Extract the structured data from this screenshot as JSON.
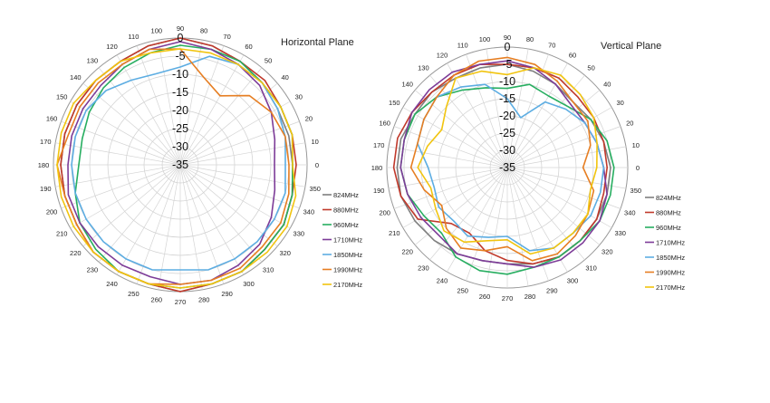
{
  "chart_data": [
    {
      "type": "polar",
      "title": "Horizontal Plane",
      "radial_ticks": [
        0,
        -5,
        -10,
        -15,
        -20,
        -25,
        -30,
        -35
      ],
      "rlim": [
        -35,
        0
      ],
      "angle_labels": [
        "0",
        "10",
        "20",
        "30",
        "40",
        "50",
        "60",
        "70",
        "80",
        "90",
        "100",
        "110",
        "120",
        "130",
        "140",
        "150",
        "160",
        "170",
        "180",
        "190",
        "200",
        "210",
        "220",
        "230",
        "240",
        "250",
        "260",
        "270",
        "280",
        "290",
        "300",
        "310",
        "320",
        "330",
        "340",
        "350"
      ],
      "angles_deg": [
        0,
        15,
        30,
        45,
        60,
        75,
        90,
        105,
        120,
        135,
        150,
        165,
        180,
        195,
        210,
        225,
        240,
        255,
        270,
        285,
        300,
        315,
        330,
        345
      ],
      "legend_position": "right",
      "series": [
        {
          "name": "824MHz",
          "color": "#7f7f7f",
          "values": [
            -4,
            -4,
            -4,
            -3,
            -2,
            -1,
            0,
            -1,
            -2,
            -2,
            -2,
            -2,
            -2,
            -2,
            -2,
            -1,
            -1,
            -1,
            0,
            -1,
            -1,
            -2,
            -2,
            -3
          ]
        },
        {
          "name": "880MHz",
          "color": "#c0392b",
          "values": [
            -3,
            -3,
            -3,
            -2,
            -2,
            -1,
            0,
            -1,
            -2,
            -2,
            -2,
            -2,
            -2,
            -2,
            -2,
            -1,
            -1,
            -1,
            0,
            -1,
            -1,
            -2,
            -2,
            -3
          ]
        },
        {
          "name": "960MHz",
          "color": "#27ae60",
          "values": [
            -4,
            -3,
            -3,
            -3,
            -2,
            -2,
            -2,
            -3,
            -4,
            -5,
            -6,
            -7,
            -7,
            -5,
            -3,
            -2,
            -1,
            -1,
            -1,
            -1,
            -1,
            -2,
            -2,
            -3
          ]
        },
        {
          "name": "1710MHz",
          "color": "#7d3c98",
          "values": [
            -9,
            -8,
            -6,
            -4,
            -3,
            -2,
            -1,
            -2,
            -3,
            -4,
            -4,
            -4,
            -4,
            -3,
            -3,
            -3,
            -3,
            -3,
            -2,
            -2,
            -3,
            -4,
            -6,
            -8
          ]
        },
        {
          "name": "1850MHz",
          "color": "#5dade2",
          "values": [
            -6,
            -5,
            -4,
            -3,
            -3,
            -4,
            -8,
            -9,
            -8,
            -6,
            -5,
            -5,
            -5,
            -5,
            -5,
            -5,
            -5,
            -5,
            -6,
            -5,
            -5,
            -5,
            -5,
            -5
          ]
        },
        {
          "name": "1990MHz",
          "color": "#e67e22",
          "values": [
            -5,
            -5,
            -6,
            -8,
            -13,
            -10,
            -3,
            -2,
            -3,
            -3,
            -3,
            -3,
            -1,
            -2,
            -2,
            -1,
            -1,
            -1,
            -2,
            -2,
            -2,
            -3,
            -3,
            -4
          ]
        },
        {
          "name": "2170MHz",
          "color": "#f1c40f",
          "values": [
            -4,
            -3,
            -3,
            -3,
            -3,
            -3,
            -3,
            -3,
            -2,
            -2,
            -1,
            -1,
            -1,
            -1,
            -1,
            -1,
            -1,
            -1,
            -1,
            -1,
            -1,
            -1,
            -1,
            -2
          ]
        }
      ]
    },
    {
      "type": "polar",
      "title": "Vertical Plane",
      "radial_ticks": [
        0,
        -5,
        -10,
        -15,
        -20,
        -25,
        -30,
        -35
      ],
      "rlim": [
        -35,
        0
      ],
      "angle_labels": [
        "0",
        "10",
        "20",
        "30",
        "40",
        "50",
        "60",
        "70",
        "80",
        "90",
        "100",
        "110",
        "120",
        "130",
        "140",
        "150",
        "160",
        "170",
        "180",
        "190",
        "200",
        "210",
        "220",
        "230",
        "240",
        "250",
        "260",
        "270",
        "280",
        "290",
        "300",
        "310",
        "320",
        "330",
        "340",
        "350"
      ],
      "angles_deg": [
        0,
        15,
        30,
        45,
        60,
        75,
        90,
        105,
        120,
        135,
        150,
        165,
        180,
        195,
        210,
        225,
        240,
        255,
        270,
        285,
        300,
        315,
        330,
        345
      ],
      "legend_position": "right",
      "series": [
        {
          "name": "824MHz",
          "color": "#7f7f7f",
          "values": [
            -5,
            -6,
            -7,
            -8,
            -7,
            -6,
            -5,
            -5,
            -5,
            -4,
            -4,
            -3,
            -3,
            -3,
            -4,
            -5,
            -6,
            -7,
            -7,
            -6,
            -5,
            -5,
            -5,
            -5
          ]
        },
        {
          "name": "880MHz",
          "color": "#c0392b",
          "values": [
            -6,
            -6,
            -6,
            -6,
            -5,
            -5,
            -5,
            -4,
            -4,
            -4,
            -3,
            -2,
            -2,
            -3,
            -5,
            -12,
            -13,
            -10,
            -8,
            -6,
            -5,
            -5,
            -5,
            -6
          ]
        },
        {
          "name": "960MHz",
          "color": "#27ae60",
          "values": [
            -4,
            -5,
            -7,
            -10,
            -11,
            -10,
            -12,
            -11,
            -9,
            -6,
            -4,
            -4,
            -4,
            -5,
            -7,
            -8,
            -5,
            -4,
            -4,
            -5,
            -5,
            -5,
            -4,
            -4
          ]
        },
        {
          "name": "1710MHz",
          "color": "#7d3c98",
          "values": [
            -7,
            -8,
            -9,
            -9,
            -7,
            -5,
            -4,
            -4,
            -3,
            -3,
            -3,
            -4,
            -4,
            -5,
            -6,
            -7,
            -6,
            -7,
            -7,
            -5,
            -4,
            -4,
            -4,
            -5
          ]
        },
        {
          "name": "1850MHz",
          "color": "#5dade2",
          "values": [
            -7,
            -8,
            -9,
            -11,
            -13,
            -20,
            -15,
            -10,
            -8,
            -6,
            -7,
            -8,
            -12,
            -13,
            -12,
            -13,
            -12,
            -14,
            -15,
            -10,
            -8,
            -8,
            -7,
            -7
          ]
        },
        {
          "name": "1990MHz",
          "color": "#e67e22",
          "values": [
            -13,
            -10,
            -8,
            -8,
            -6,
            -4,
            -3,
            -3,
            -4,
            -6,
            -7,
            -8,
            -7,
            -10,
            -13,
            -10,
            -8,
            -10,
            -12,
            -7,
            -6,
            -7,
            -8,
            -9
          ]
        },
        {
          "name": "2170MHz",
          "color": "#f1c40f",
          "values": [
            -9,
            -8,
            -6,
            -5,
            -4,
            -5,
            -8,
            -6,
            -5,
            -10,
            -13,
            -11,
            -9,
            -12,
            -11,
            -9,
            -10,
            -13,
            -14,
            -9,
            -8,
            -8,
            -8,
            -10
          ]
        }
      ]
    }
  ]
}
